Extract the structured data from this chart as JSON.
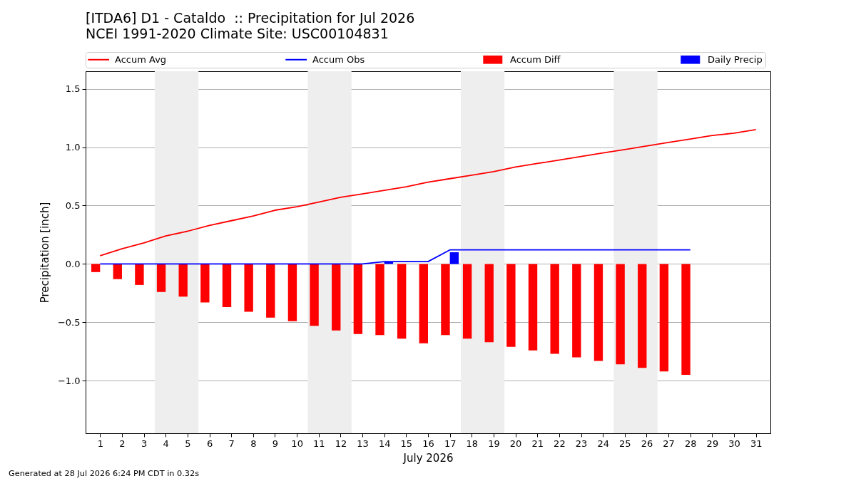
{
  "chart_data": {
    "type": "bar",
    "title": "[ITDA6] D1 - Cataldo  :: Precipitation for Jul 2026",
    "subtitle": "NCEI 1991-2020 Climate Site: USC00104831",
    "xlabel": "July 2026",
    "ylabel": "Precipitation [inch]",
    "x": [
      1,
      2,
      3,
      4,
      5,
      6,
      7,
      8,
      9,
      10,
      11,
      12,
      13,
      14,
      15,
      16,
      17,
      18,
      19,
      20,
      21,
      22,
      23,
      24,
      25,
      26,
      27,
      28,
      29,
      30,
      31
    ],
    "series": [
      {
        "name": "Accum Avg",
        "type": "line",
        "color": "#ff0000",
        "values": [
          0.07,
          0.13,
          0.18,
          0.24,
          0.28,
          0.33,
          0.37,
          0.41,
          0.46,
          0.49,
          0.53,
          0.57,
          0.6,
          0.63,
          0.66,
          0.7,
          0.73,
          0.76,
          0.79,
          0.83,
          0.86,
          0.89,
          0.92,
          0.95,
          0.98,
          1.01,
          1.04,
          1.07,
          1.1,
          1.12,
          1.15
        ]
      },
      {
        "name": "Accum Obs",
        "type": "line",
        "color": "#0000ff",
        "values": [
          0,
          0,
          0,
          0,
          0,
          0,
          0,
          0,
          0,
          0,
          0,
          0,
          0,
          0.02,
          0.02,
          0.02,
          0.12,
          0.12,
          0.12,
          0.12,
          0.12,
          0.12,
          0.12,
          0.12,
          0.12,
          0.12,
          0.12,
          0.12,
          null,
          null,
          null
        ]
      },
      {
        "name": "Accum Diff",
        "color": "#ff0000",
        "values": [
          -0.07,
          -0.13,
          -0.18,
          -0.24,
          -0.28,
          -0.33,
          -0.37,
          -0.41,
          -0.46,
          -0.49,
          -0.53,
          -0.57,
          -0.6,
          -0.61,
          -0.64,
          -0.68,
          -0.61,
          -0.64,
          -0.67,
          -0.71,
          -0.74,
          -0.77,
          -0.8,
          -0.83,
          -0.86,
          -0.89,
          -0.92,
          -0.95,
          null,
          null,
          null
        ]
      },
      {
        "name": "Daily Precip",
        "color": "#0000ff",
        "values": [
          null,
          null,
          null,
          null,
          null,
          null,
          null,
          null,
          null,
          null,
          null,
          null,
          null,
          0.02,
          null,
          null,
          0.1,
          null,
          null,
          null,
          null,
          null,
          null,
          null,
          null,
          null,
          null,
          null,
          null,
          null,
          null
        ]
      }
    ],
    "xlim": [
      0.5,
      31.5
    ],
    "xticks": [
      1,
      2,
      3,
      4,
      5,
      6,
      7,
      8,
      9,
      10,
      11,
      12,
      13,
      14,
      15,
      16,
      17,
      18,
      19,
      20,
      21,
      22,
      23,
      24,
      25,
      26,
      27,
      28,
      29,
      30,
      31
    ],
    "ylim": [
      -1.45,
      1.65
    ],
    "yticks": [
      {
        "value": -1,
        "label": "−1.0"
      },
      {
        "value": -0.5,
        "label": "−0.5"
      },
      {
        "value": 0,
        "label": "0.0"
      },
      {
        "value": 0.5,
        "label": "0.5"
      },
      {
        "value": 1,
        "label": "1.0"
      },
      {
        "value": 1.5,
        "label": "1.5"
      }
    ],
    "bands": [
      {
        "axis": "x",
        "from": 3.5,
        "to": 5.5,
        "color": "#eeeeee"
      },
      {
        "axis": "x",
        "from": 10.5,
        "to": 12.5,
        "color": "#eeeeee"
      },
      {
        "axis": "x",
        "from": 17.5,
        "to": 19.5,
        "color": "#eeeeee"
      },
      {
        "axis": "x",
        "from": 24.5,
        "to": 26.5,
        "color": "#eeeeee"
      }
    ],
    "grid": "y",
    "legend": "top",
    "annotations": [
      "Generated at 28 Jul 2026 6:24 PM CDT in 0.32s"
    ]
  }
}
